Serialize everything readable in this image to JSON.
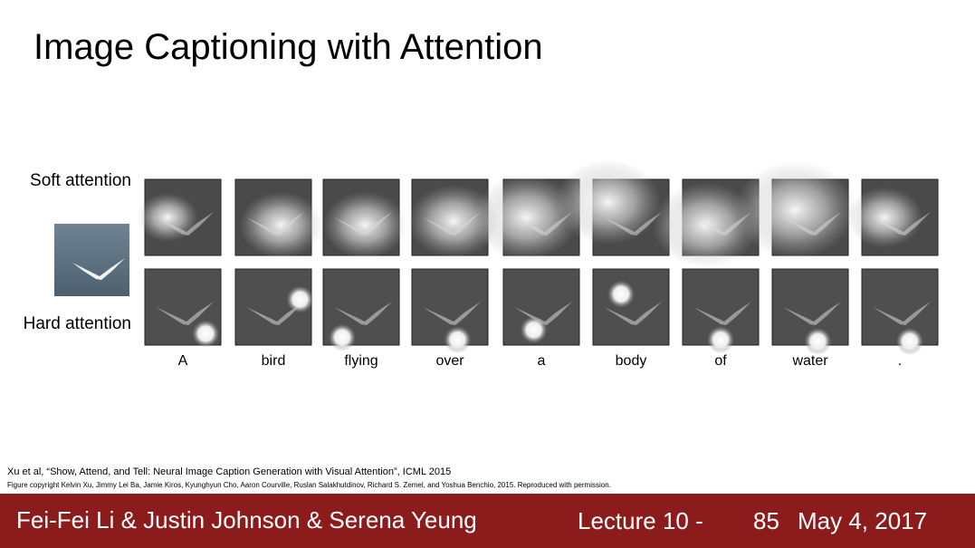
{
  "title": "Image Captioning with Attention",
  "rows": [
    "Soft attention",
    "Hard attention"
  ],
  "words": [
    "A",
    "bird",
    "flying",
    "over",
    "a",
    "body",
    "of",
    "water",
    "."
  ],
  "citation": "Xu et al, “Show, Attend, and Tell: Neural Image Caption Generation with Visual Attention”, ICML 2015",
  "copyright": "Figure copyright Kelvin Xu, Jimmy Lei Ba, Jamie Kiros, Kyunghyun Cho, Aaron Courville, Ruslan Salakhutdinov, Richard S. Zemel, and Yoshua Benchio, 2015. Reproduced with permission.",
  "footer": {
    "authors": "Fei-Fei Li & Justin Johnson & Serena Yeung",
    "lecture": "Lecture 10 -",
    "page": "85",
    "date": "May 4, 2017"
  }
}
